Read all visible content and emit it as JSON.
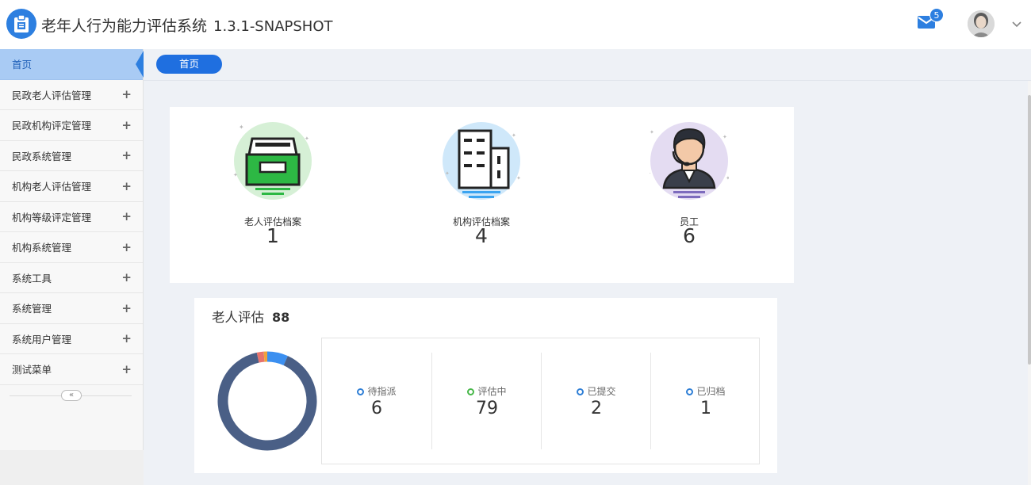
{
  "header": {
    "app_title": "老年人行为能力评估系统",
    "version": "1.3.1-SNAPSHOT",
    "mail_badge": "5"
  },
  "sidebar": {
    "items": [
      {
        "label": "首页",
        "active": true
      },
      {
        "label": "民政老人评估管理",
        "expand": "+"
      },
      {
        "label": "民政机构评定管理",
        "expand": "+"
      },
      {
        "label": "民政系统管理",
        "expand": "+"
      },
      {
        "label": "机构老人评估管理",
        "expand": "+"
      },
      {
        "label": "机构等级评定管理",
        "expand": "+"
      },
      {
        "label": "机构系统管理",
        "expand": "+"
      },
      {
        "label": "系统工具",
        "expand": "+"
      },
      {
        "label": "系统管理",
        "expand": "+"
      },
      {
        "label": "系统用户管理",
        "expand": "+"
      },
      {
        "label": "测试菜单",
        "expand": "+"
      }
    ],
    "collapse_label": "«"
  },
  "breadcrumb": {
    "tab": "首页"
  },
  "stats": [
    {
      "icon": "archive-box-icon",
      "label": "老人评估档案",
      "value": "1"
    },
    {
      "icon": "building-icon",
      "label": "机构评估档案",
      "value": "4"
    },
    {
      "icon": "staff-headset-icon",
      "label": "员工",
      "value": "6"
    }
  ],
  "elder_eval": {
    "title": "老人评估",
    "total": "88",
    "statuses": [
      {
        "label": "待指派",
        "value": "6"
      },
      {
        "label": "评估中",
        "value": "79"
      },
      {
        "label": "已提交",
        "value": "2"
      },
      {
        "label": "已归档",
        "value": "1"
      }
    ]
  },
  "chart_data": {
    "type": "pie",
    "categories": [
      "待指派",
      "评估中",
      "已提交",
      "已归档"
    ],
    "values": [
      6,
      79,
      2,
      1
    ],
    "colors": [
      "#3b8ff0",
      "#4a5f86",
      "#e8736c",
      "#f0a23c"
    ]
  },
  "colors": {
    "primary": "#1f6fe0",
    "active_nav_bg": "#a9cbf4",
    "status_green": "#48b84a",
    "status_blue": "#2f7fd6"
  }
}
